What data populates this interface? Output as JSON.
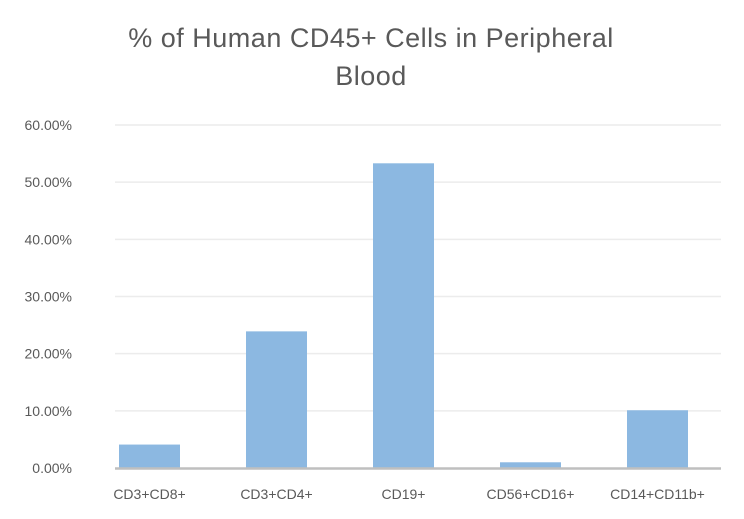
{
  "chart_data": {
    "type": "bar",
    "title_lines": [
      "% of Human CD45+ Cells in Peripheral",
      "Blood"
    ],
    "categories": [
      "CD3+CD8+",
      "CD3+CD4+",
      "CD19+",
      "CD56+CD16+",
      "CD14+CD11b+"
    ],
    "values": [
      4.1,
      23.9,
      53.3,
      1.0,
      10.1
    ],
    "value_unit": "%",
    "ylim": [
      0,
      60
    ],
    "yticks": [
      "0.00%",
      "10.00%",
      "20.00%",
      "30.00%",
      "40.00%",
      "50.00%",
      "60.00%"
    ],
    "grid": true,
    "bar_color": "#8cb8e1",
    "xlabel": "",
    "ylabel": ""
  }
}
